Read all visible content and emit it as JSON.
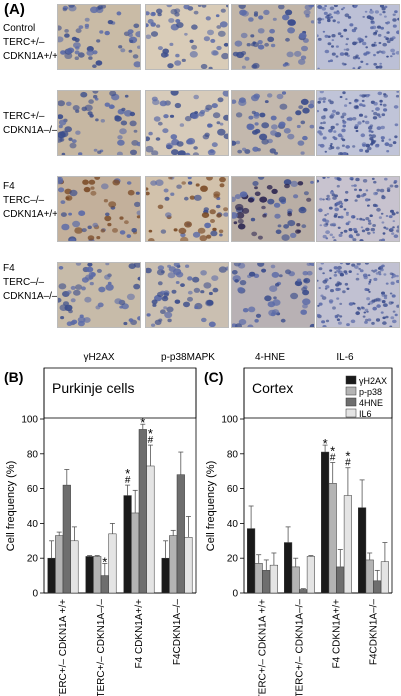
{
  "panelA": {
    "label": "(A)",
    "rows": [
      [
        "Control",
        "TERC+/–",
        "CDKN1A+/+"
      ],
      [
        "TERC+/–",
        "CDKN1A–/–"
      ],
      [
        "F4 TERC–/–",
        "CDKN1A+/+"
      ],
      [
        "F4 TERC–/–",
        "CDKN1A–/–"
      ]
    ],
    "columns": [
      "γH2AX",
      "p-p38MAPK",
      "4-HNE",
      "IL-6"
    ]
  },
  "colors": {
    "series": [
      "#1a1a1a",
      "#b4b4b4",
      "#6e6e6e",
      "#e4e4e4"
    ]
  },
  "chart_data": [
    {
      "type": "bar",
      "panel": "(B)",
      "title": "Purkinje cells",
      "ylabel": "Cell frequency (%)",
      "ylim": [
        0,
        100
      ],
      "yticks": [
        "0",
        "20",
        "40",
        "60",
        "80",
        "100"
      ],
      "categories": [
        "TERC+/– CDKN1A +/+",
        "TERC+/– CDKN1A–/–",
        "F4 CDKN1A+/+",
        "F4CDKN1A–/–"
      ],
      "series": [
        {
          "name": "γH2AX",
          "values": [
            20,
            21,
            56,
            20
          ],
          "err": [
            10,
            0.5,
            6,
            10
          ]
        },
        {
          "name": "p-p38",
          "values": [
            33,
            21,
            46,
            33
          ],
          "err": [
            2,
            0.5,
            13,
            3
          ]
        },
        {
          "name": "4HNE",
          "values": [
            62,
            10,
            94,
            68
          ],
          "err": [
            9,
            7,
            3,
            13
          ]
        },
        {
          "name": "IL6",
          "values": [
            30,
            34,
            73,
            32
          ],
          "err": [
            8,
            6,
            12,
            12
          ]
        }
      ],
      "annotations": [
        {
          "category": 1,
          "series": 2,
          "marks": [
            "*"
          ]
        },
        {
          "category": 2,
          "series": 0,
          "marks": [
            "*",
            "#"
          ]
        },
        {
          "category": 2,
          "series": 2,
          "marks": [
            "*"
          ]
        },
        {
          "category": 2,
          "series": 3,
          "marks": [
            "*",
            "#"
          ]
        }
      ]
    },
    {
      "type": "bar",
      "panel": "(C)",
      "title": "Cortex",
      "ylabel": "Cell frequency (%)",
      "ylim": [
        0,
        100
      ],
      "yticks": [
        "0",
        "20",
        "40",
        "60",
        "80",
        "100"
      ],
      "categories": [
        "TERC+/– CDKN1A +/+",
        "TERC+/– CDKN1A–/–",
        "F4 CDKN1A+/+",
        "F4CDKN1A–/–"
      ],
      "legend": "top-right",
      "series": [
        {
          "name": "γH2AX",
          "values": [
            37,
            29,
            81,
            49
          ],
          "err": [
            13,
            9,
            4,
            16
          ]
        },
        {
          "name": "p-p38",
          "values": [
            17,
            15,
            63,
            19
          ],
          "err": [
            5,
            5,
            12,
            4
          ]
        },
        {
          "name": "4HNE",
          "values": [
            13,
            2,
            15,
            7
          ],
          "err": [
            6,
            0.5,
            10,
            6
          ]
        },
        {
          "name": "IL6",
          "values": [
            16,
            21,
            56,
            18
          ],
          "err": [
            7,
            0.5,
            16,
            11
          ]
        }
      ],
      "annotations": [
        {
          "category": 2,
          "series": 0,
          "marks": [
            "*"
          ]
        },
        {
          "category": 2,
          "series": 1,
          "marks": [
            "*",
            "#"
          ]
        },
        {
          "category": 2,
          "series": 3,
          "marks": [
            "*",
            "#"
          ]
        }
      ]
    }
  ]
}
